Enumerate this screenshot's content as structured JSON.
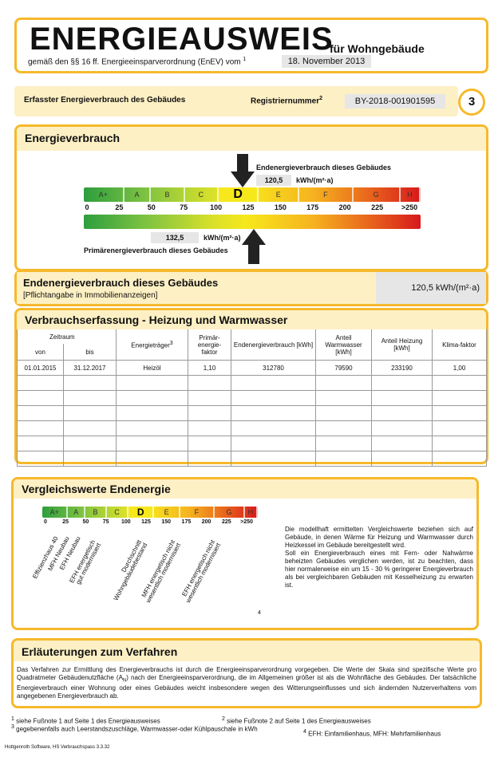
{
  "header": {
    "title": "ENERGIEAUSWEIS",
    "subtitle": "für Wohngebäude",
    "legal": "gemäß den §§ 16 ff. Energieeinsparverordnung (EnEV) vom",
    "legal_sup": "1",
    "date": "18. November 2013"
  },
  "registration": {
    "label": "Erfasster Energieverbrauch des Gebäudes",
    "reg_label": "Registriernummer",
    "reg_sup": "2",
    "reg_number": "BY-2018-001901595",
    "page": "3"
  },
  "energy": {
    "title": "Energieverbrauch",
    "end_label": "Endenergieverbrauch dieses Gebäudes",
    "end_value": "120,5",
    "end_unit": "kWh/(m²·a)",
    "primary_value": "132,5",
    "primary_unit": "kWh/(m²·a)",
    "primary_label": "Primärenergieverbrauch dieses Gebäudes",
    "classes": [
      "A+",
      "A",
      "B",
      "C",
      "D",
      "E",
      "F",
      "G",
      "H"
    ],
    "scale": [
      "0",
      "25",
      "50",
      "75",
      "100",
      "125",
      "150",
      "175",
      "200",
      "225",
      ">250"
    ]
  },
  "final": {
    "title": "Endenergieverbrauch dieses Gebäudes",
    "note": "[Pflichtangabe in Immobilienanzeigen]",
    "value": "120,5 kWh/(m²·a)"
  },
  "consumption": {
    "title": "Verbrauchserfassung - Heizung und Warmwasser",
    "period": "Zeitraum",
    "headers": [
      "von",
      "bis",
      "Energieträger",
      "Primär-energie-faktor",
      "Endenergieverbrauch [kWh]",
      "Anteil Warmwasser [kWh]",
      "Anteil Heizung [kWh]",
      "Klima-faktor"
    ],
    "carrier_sup": "3",
    "rows": [
      [
        "01.01.2015",
        "31.12.2017",
        "Heizöl",
        "1,10",
        "312780",
        "79590",
        "233190",
        "1,00"
      ]
    ]
  },
  "comparison": {
    "title": "Vergleichswerte Endenergie",
    "benchmarks": [
      "Effizienzhaus 40",
      "MFH Neubau",
      "EFH Neubau",
      "EFH energetisch gut modernisiert",
      "Durchschnitt Wohngebäudebestand",
      "MFH energetisch nicht wesentlich modernisiert",
      "EFH energetisch nicht wesentlich modernisiert"
    ],
    "footnote_mark": "4",
    "paragraphs": [
      "Die modellhaft ermittelten Vergleichswerte beziehen sich auf Gebäude, in denen Wärme für Heizung und Warmwasser durch Heizkessel im Gebäude bereitgestellt wird.",
      "Soll ein Energieverbrauch eines mit Fern- oder Nahwärme beheizten Gebäudes verglichen werden, ist zu beachten, dass hier normalerweise ein um 15 - 30 % geringerer Energieverbrauch als bei vergleichbaren Gebäuden mit Kesselheizung zu erwarten ist."
    ]
  },
  "explanation": {
    "title": "Erläuterungen zum Verfahren",
    "text_before": "Das Verfahren zur Ermittlung des Energieverbrauchs ist durch die Energieeinsparverordnung vorgegeben. Die Werte der Skala sind spezifische Werte pro Quadratmeter Gebäudenutzfläche (A",
    "subscript": "N",
    "text_after": ") nach der Energieeinsparverordnung, die im Allgemeinen größer ist als die Wohnfläche des Gebäudes. Der tatsächliche Energieverbrauch einer Wohnung oder eines Gebäudes weicht insbesondere wegen des Witterungseinflusses und sich ändernden Nutzerverhaltens vom angegebenen Energieverbrauch ab."
  },
  "footnotes": [
    {
      "mark": "1",
      "text": "siehe Fußnote 1 auf Seite 1 des Energieausweises"
    },
    {
      "mark": "2",
      "text": "siehe Fußnote 2 auf Seite 1 des Energieausweises"
    },
    {
      "mark": "3",
      "text": "gegebenenfalls auch Leerstandszuschläge, Warmwasser-oder Kühlpauschale in kWh"
    },
    {
      "mark": "4",
      "text": "EFH: Einfamilienhaus, MFH: Mehrfamilienhaus"
    }
  ],
  "footer": "Hottgenroth Software, HS Verbrauchspass 3.3.32"
}
